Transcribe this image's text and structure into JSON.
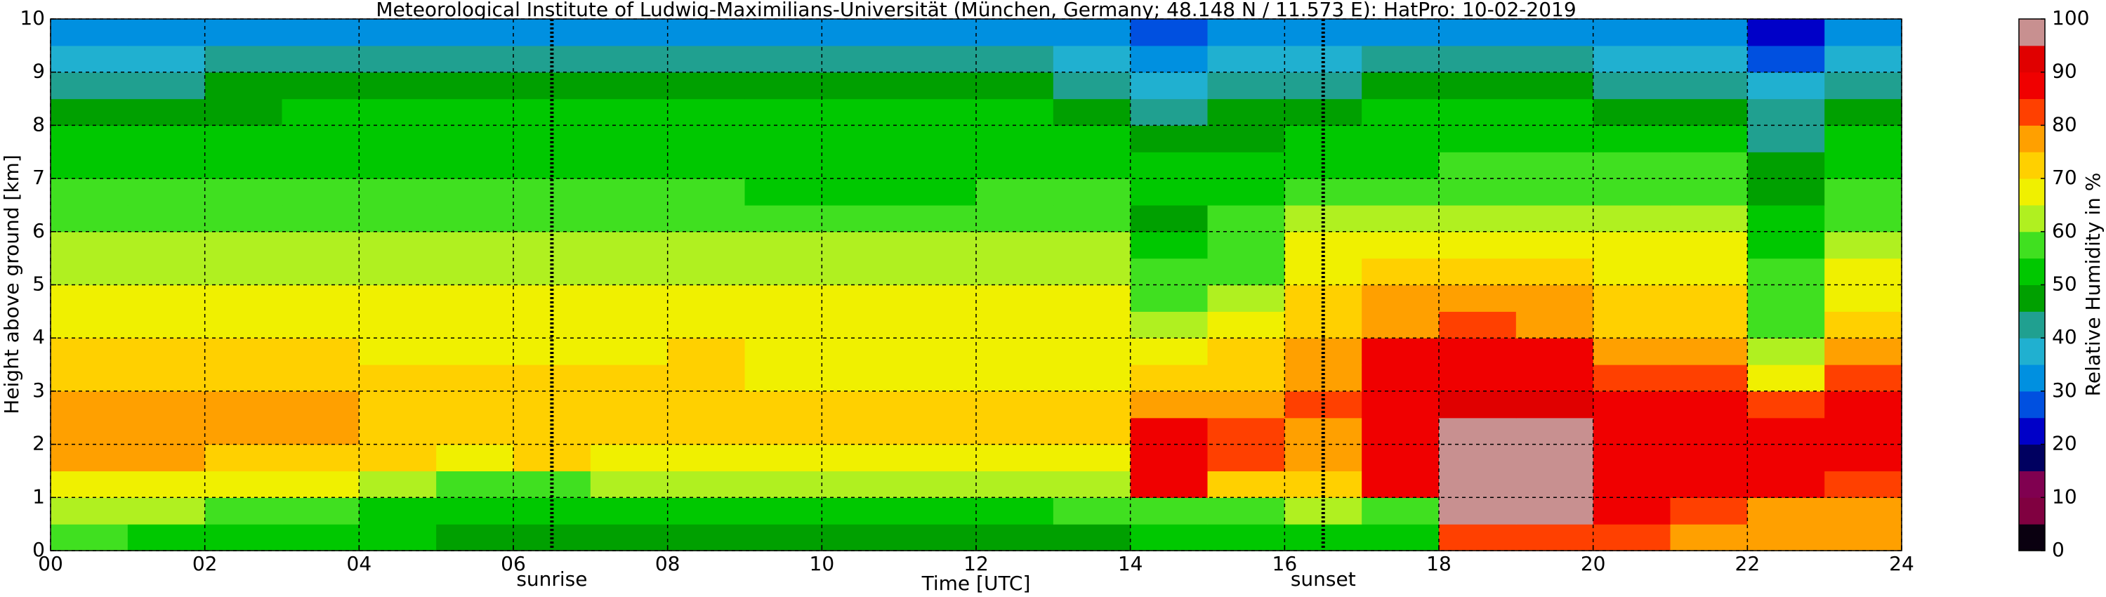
{
  "chart_data": {
    "type": "heatmap",
    "title": "Meteorological Institute of Ludwig-Maximilians-Universität (München, Germany; 48.148 N / 11.573 E):    HatPro: 10-02-2019",
    "xlabel": "Time [UTC]",
    "ylabel": "Height above ground [km]",
    "colorbar_label": "Relative Humidity in %",
    "xbins": [
      0,
      1,
      2,
      3,
      4,
      5,
      6,
      7,
      8,
      9,
      10,
      11,
      12,
      13,
      14,
      15,
      16,
      17,
      18,
      19,
      20,
      21,
      22,
      23,
      24
    ],
    "ybins": [
      0,
      0.5,
      1,
      1.5,
      2,
      2.5,
      3,
      3.5,
      4,
      4.5,
      5,
      5.5,
      6,
      6.5,
      7,
      7.5,
      8,
      8.5,
      9,
      9.5,
      10
    ],
    "z": [
      [
        55,
        52,
        52,
        52,
        50,
        48,
        48,
        48,
        47,
        47,
        47,
        47,
        48,
        48,
        50,
        52,
        53,
        50,
        80,
        82,
        80,
        78,
        78,
        75
      ],
      [
        60,
        60,
        55,
        55,
        52,
        50,
        50,
        52,
        50,
        50,
        50,
        52,
        53,
        55,
        55,
        58,
        60,
        58,
        97,
        97,
        85,
        82,
        78,
        78
      ],
      [
        68,
        68,
        65,
        65,
        62,
        58,
        58,
        60,
        62,
        60,
        60,
        62,
        62,
        62,
        85,
        70,
        72,
        85,
        97,
        97,
        87,
        86,
        85,
        82
      ],
      [
        75,
        75,
        74,
        73,
        70,
        68,
        70,
        68,
        67,
        68,
        68,
        68,
        68,
        68,
        88,
        80,
        75,
        88,
        97,
        97,
        88,
        87,
        88,
        85
      ],
      [
        77,
        77,
        76,
        75,
        73,
        72,
        74,
        72,
        70,
        70,
        70,
        70,
        70,
        70,
        87,
        83,
        78,
        88,
        97,
        97,
        88,
        88,
        87,
        86
      ],
      [
        76,
        76,
        76,
        75,
        72,
        72,
        73,
        72,
        70,
        70,
        70,
        70,
        70,
        70,
        75,
        78,
        80,
        87,
        90,
        90,
        88,
        85,
        80,
        85
      ],
      [
        72,
        72,
        72,
        72,
        70,
        70,
        70,
        70,
        70,
        68,
        68,
        68,
        68,
        68,
        70,
        72,
        78,
        86,
        88,
        88,
        80,
        80,
        68,
        80
      ],
      [
        70,
        70,
        70,
        70,
        68,
        68,
        68,
        69,
        70,
        68,
        68,
        68,
        68,
        68,
        68,
        70,
        76,
        85,
        88,
        86,
        76,
        75,
        62,
        75
      ],
      [
        68,
        68,
        68,
        68,
        67,
        67,
        67,
        68,
        68,
        67,
        67,
        67,
        67,
        67,
        60,
        65,
        72,
        78,
        80,
        78,
        72,
        72,
        58,
        72
      ],
      [
        66,
        66,
        66,
        66,
        66,
        66,
        66,
        66,
        66,
        66,
        66,
        66,
        66,
        66,
        55,
        62,
        70,
        75,
        76,
        75,
        70,
        70,
        56,
        68
      ],
      [
        64,
        64,
        64,
        64,
        64,
        64,
        64,
        64,
        64,
        63,
        63,
        63,
        64,
        64,
        55,
        58,
        68,
        70,
        72,
        70,
        68,
        68,
        55,
        65
      ],
      [
        62,
        62,
        62,
        62,
        62,
        62,
        62,
        62,
        60,
        60,
        60,
        60,
        62,
        62,
        52,
        56,
        65,
        67,
        68,
        67,
        66,
        66,
        53,
        62
      ],
      [
        58,
        58,
        58,
        58,
        58,
        58,
        58,
        58,
        57,
        57,
        56,
        57,
        58,
        58,
        48,
        55,
        60,
        60,
        62,
        62,
        62,
        62,
        50,
        58
      ],
      [
        55,
        55,
        55,
        56,
        56,
        56,
        56,
        56,
        55,
        54,
        54,
        54,
        55,
        55,
        50,
        52,
        56,
        55,
        58,
        58,
        58,
        58,
        48,
        55
      ],
      [
        53,
        53,
        53,
        54,
        54,
        54,
        54,
        53,
        53,
        52,
        52,
        52,
        53,
        53,
        52,
        50,
        52,
        52,
        55,
        55,
        55,
        55,
        45,
        52
      ],
      [
        50,
        50,
        52,
        52,
        52,
        52,
        52,
        52,
        52,
        52,
        52,
        52,
        52,
        50,
        48,
        48,
        50,
        52,
        52,
        52,
        52,
        52,
        42,
        50
      ],
      [
        45,
        45,
        48,
        50,
        50,
        50,
        50,
        50,
        50,
        50,
        50,
        50,
        50,
        48,
        42,
        45,
        48,
        50,
        50,
        50,
        48,
        48,
        40,
        45
      ],
      [
        42,
        42,
        45,
        45,
        46,
        45,
        45,
        45,
        45,
        45,
        45,
        45,
        45,
        42,
        38,
        40,
        42,
        45,
        45,
        45,
        42,
        42,
        35,
        42
      ],
      [
        38,
        38,
        40,
        40,
        40,
        40,
        40,
        40,
        40,
        40,
        40,
        40,
        40,
        38,
        32,
        35,
        38,
        40,
        40,
        40,
        38,
        36,
        28,
        38
      ],
      [
        32,
        33,
        34,
        34,
        34,
        34,
        34,
        34,
        34,
        34,
        34,
        34,
        34,
        33,
        28,
        30,
        32,
        34,
        34,
        34,
        32,
        30,
        24,
        32
      ]
    ],
    "xlim": [
      0,
      24
    ],
    "ylim": [
      0,
      10
    ],
    "clim": [
      0,
      100
    ],
    "xticks": [
      {
        "value": 0,
        "label": "00"
      },
      {
        "value": 2,
        "label": "02"
      },
      {
        "value": 4,
        "label": "04"
      },
      {
        "value": 6,
        "label": "06"
      },
      {
        "value": 8,
        "label": "08"
      },
      10,
      12,
      14,
      16,
      18,
      20,
      22,
      24
    ],
    "yticks": [
      0,
      1,
      2,
      3,
      4,
      5,
      6,
      7,
      8,
      9,
      10
    ],
    "cticks": [
      0,
      10,
      20,
      30,
      40,
      50,
      60,
      70,
      80,
      90,
      100
    ],
    "colors": [
      "#0a0010",
      "#800040",
      "#800050",
      "#000060",
      "#0000c8",
      "#0050e0",
      "#0090e0",
      "#20b0d0",
      "#20a090",
      "#00a000",
      "#00c800",
      "#40e020",
      "#b0f020",
      "#f0f000",
      "#ffd000",
      "#ffa000",
      "#ff4000",
      "#f00000",
      "#e00000",
      "#c89090"
    ],
    "grid": true,
    "annotations": [
      {
        "text": "sunrise",
        "x": 6.5
      },
      {
        "text": "sunset",
        "x": 16.5
      }
    ]
  }
}
